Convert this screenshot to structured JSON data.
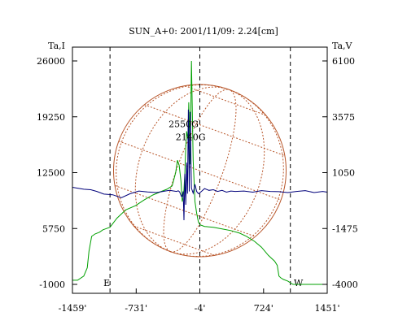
{
  "chart_data": {
    "type": "line",
    "title": "SUN_A+0: 2001/11/09: 2.24[cm]",
    "left_axis_label": "Ta,I",
    "right_axis_label": "Ta,V",
    "x_ticks": [
      "-1459'",
      "-731'",
      "-4'",
      "724'",
      "1451'"
    ],
    "x_tick_values": [
      -1459,
      -731,
      -4,
      724,
      1451
    ],
    "xlim": [
      -1459,
      1451
    ],
    "left_ticks": [
      "26000",
      "19250",
      "12500",
      "5750",
      "-1000"
    ],
    "left_tick_values": [
      26000,
      19250,
      12500,
      5750,
      -1000
    ],
    "ylim_left": [
      -1000,
      26000
    ],
    "right_ticks": [
      "6100",
      "3575",
      "1050",
      "-1475",
      "-4000"
    ],
    "right_tick_values": [
      6100,
      3575,
      1050,
      -1475,
      -4000
    ],
    "ylim_right": [
      -4000,
      6100
    ],
    "markers": [
      {
        "label": "E",
        "x": -1030
      },
      {
        "label": "",
        "x": -4
      },
      {
        "label": "W",
        "x": 1030
      }
    ],
    "annotations": [
      {
        "text": "2550G",
        "x": -190,
        "y": 18000
      },
      {
        "text": "2140G",
        "x": -110,
        "y": 16450
      }
    ],
    "disk_radius_arcmin": 980,
    "series": [
      {
        "axis": "left",
        "color": "#00a000",
        "x": [
          -1459,
          -1400,
          -1330,
          -1290,
          -1270,
          -1240,
          -1200,
          -1150,
          -1110,
          -1030,
          -950,
          -850,
          -740,
          -640,
          -540,
          -450,
          -380,
          -320,
          -280,
          -260,
          -240,
          -220,
          -205,
          -195,
          -185,
          -175,
          -165,
          -155,
          -140,
          -130,
          -115,
          -100,
          -80,
          -60,
          -40,
          -20,
          0,
          50,
          150,
          250,
          350,
          450,
          530,
          620,
          700,
          780,
          850,
          880,
          900,
          920,
          950,
          1000,
          1030,
          1060,
          1100,
          1200,
          1300,
          1451
        ],
        "values": [
          -500,
          -500,
          0,
          1000,
          3000,
          4800,
          5100,
          5300,
          5600,
          5900,
          7000,
          8000,
          8500,
          9200,
          9800,
          10200,
          10500,
          10900,
          12500,
          14000,
          13400,
          11500,
          9000,
          9500,
          10500,
          12500,
          15500,
          17500,
          16500,
          21000,
          13500,
          26000,
          14000,
          9000,
          7600,
          6500,
          6200,
          6000,
          5900,
          5700,
          5500,
          5200,
          4800,
          4200,
          3500,
          2500,
          1800,
          1300,
          0,
          -200,
          -400,
          -600,
          -800,
          -1000,
          -1000,
          -1000,
          -1000,
          -1000
        ]
      },
      {
        "axis": "right",
        "color": "#00007a",
        "x": [
          -1459,
          -1400,
          -1330,
          -1250,
          -1180,
          -1100,
          -1000,
          -900,
          -800,
          -700,
          -600,
          -500,
          -400,
          -350,
          -300,
          -270,
          -250,
          -235,
          -225,
          -215,
          -205,
          -195,
          -185,
          -175,
          -165,
          -155,
          -145,
          -135,
          -125,
          -115,
          -100,
          -80,
          -60,
          -40,
          -20,
          0,
          50,
          100,
          150,
          200,
          250,
          300,
          350,
          400,
          500,
          600,
          700,
          800,
          900,
          1000,
          1100,
          1200,
          1300,
          1400,
          1451
        ],
        "values": [
          390,
          350,
          300,
          280,
          200,
          80,
          50,
          -80,
          100,
          220,
          180,
          150,
          220,
          250,
          220,
          200,
          230,
          180,
          80,
          -20,
          -30,
          200,
          -1100,
          1000,
          -400,
          1500,
          100,
          3900,
          200,
          3800,
          350,
          120,
          520,
          200,
          100,
          150,
          330,
          250,
          280,
          200,
          250,
          170,
          220,
          200,
          220,
          170,
          240,
          200,
          190,
          150,
          200,
          240,
          150,
          200,
          170
        ]
      }
    ]
  }
}
